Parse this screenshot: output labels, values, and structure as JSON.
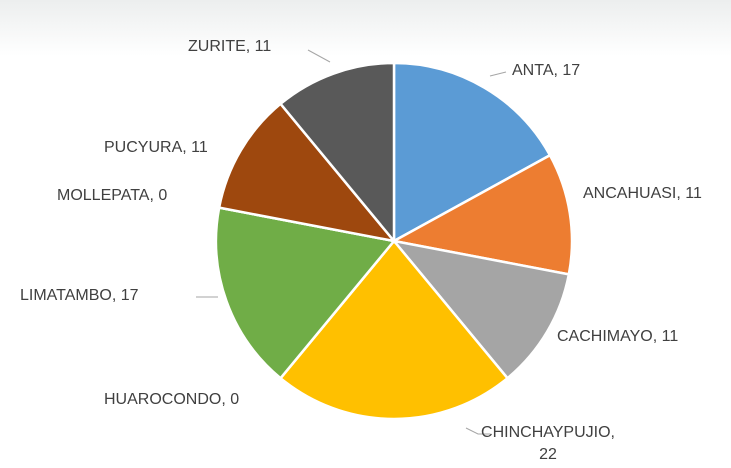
{
  "chart_data": {
    "type": "pie",
    "values": [
      17,
      11,
      11,
      22,
      0,
      17,
      0,
      11,
      11
    ],
    "value_labels": [
      "ANTA, 17",
      "ANCAHUASI, 11",
      "CACHIMAYO, 11",
      "CHINCHAYPUJIO, 22",
      "HUAROCONDO, 0",
      "LIMATAMBO, 17",
      "MOLLEPATA, 0",
      "PUCYURA, 11",
      "ZURITE, 11"
    ],
    "colors": [
      "#5b9bd5",
      "#ed7d31",
      "#a5a5a5",
      "#ffc000",
      "#4472c4",
      "#70ad47",
      "#264478",
      "#9e480e",
      "#595959"
    ]
  }
}
